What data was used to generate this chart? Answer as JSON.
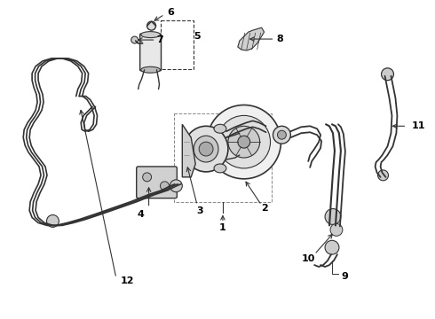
{
  "background_color": "#ffffff",
  "line_color": "#333333",
  "label_color": "#000000",
  "label_fontsize": 8,
  "fig_width": 4.9,
  "fig_height": 3.6,
  "dpi": 100
}
